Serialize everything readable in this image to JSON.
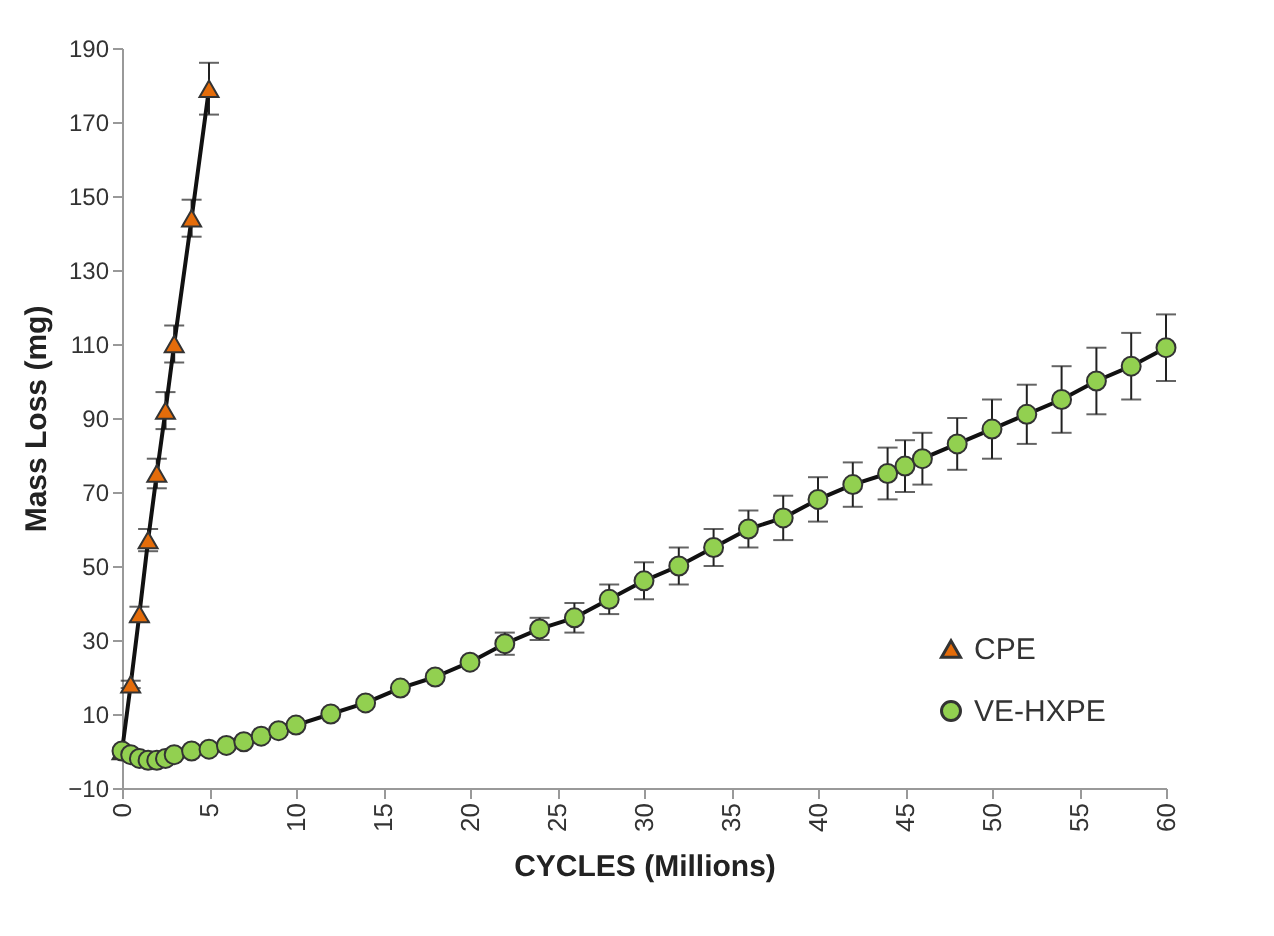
{
  "chart_data": {
    "type": "line",
    "xlabel": "CYCLES (Millions)",
    "ylabel": "Mass Loss (mg)",
    "xlim": [
      0,
      60
    ],
    "xticks": [
      0,
      5,
      10,
      15,
      20,
      25,
      30,
      35,
      40,
      45,
      50,
      55,
      60
    ],
    "ylim": [
      -10,
      190
    ],
    "yticks": [
      -10,
      10,
      30,
      50,
      70,
      90,
      110,
      130,
      150,
      170,
      190
    ],
    "grid": false,
    "legend": "bottom right",
    "line_style": "solid",
    "series": [
      {
        "name": "CPE",
        "color": "#e46c0a",
        "marker": "triangle",
        "x": [
          0,
          0.5,
          1,
          1.5,
          2,
          2.5,
          3,
          4,
          5
        ],
        "values": [
          0,
          18,
          37,
          57,
          75,
          92,
          110,
          144,
          179
        ],
        "errors": [
          null,
          1,
          2,
          3,
          4,
          5,
          5,
          5,
          7
        ]
      },
      {
        "name": "VE-HXPE",
        "color": "#92d050",
        "marker": "circle",
        "x": [
          0,
          0.5,
          1,
          1.5,
          2,
          2.5,
          3,
          4,
          5,
          6,
          7,
          8,
          9,
          10,
          12,
          14,
          16,
          18,
          20,
          22,
          24,
          26,
          28,
          30,
          32,
          34,
          36,
          38,
          40,
          42,
          44,
          45,
          46,
          48,
          50,
          52,
          54,
          56,
          58,
          60
        ],
        "values": [
          0,
          -1,
          -2,
          -2.5,
          -2.5,
          -2,
          -1,
          0,
          0.5,
          1.5,
          2.5,
          4,
          5.5,
          7,
          10,
          13,
          17,
          20,
          24,
          29,
          33,
          36,
          41,
          46,
          50,
          55,
          60,
          63,
          68,
          72,
          75,
          77,
          79,
          83,
          87,
          91,
          95,
          100,
          104,
          109
        ],
        "errors": [
          null,
          null,
          null,
          null,
          null,
          null,
          null,
          null,
          null,
          null,
          null,
          null,
          null,
          null,
          null,
          null,
          null,
          null,
          null,
          3,
          3,
          4,
          4,
          5,
          5,
          5,
          5,
          6,
          6,
          6,
          7,
          7,
          7,
          7,
          8,
          8,
          9,
          9,
          9,
          9
        ]
      }
    ]
  }
}
